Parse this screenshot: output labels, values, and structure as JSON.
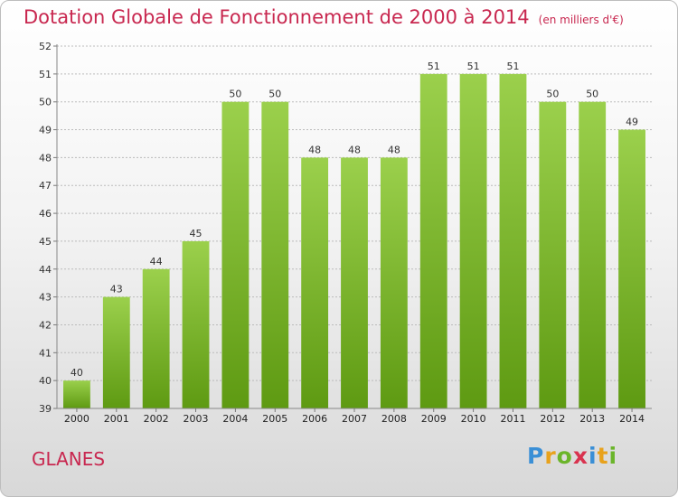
{
  "header": {
    "title": "Dotation Globale de Fonctionnement de 2000 à 2014",
    "unit": "(en milliers d'€)"
  },
  "footer": {
    "commune": "GLANES",
    "brand_letters": [
      "P",
      "r",
      "o",
      "x",
      "i",
      "t",
      "i"
    ],
    "brand_colors": [
      "#3a8fd6",
      "#e8a21c",
      "#6bb52a",
      "#d9334f",
      "#3a8fd6",
      "#e8a21c",
      "#6bb52a"
    ]
  },
  "colors": {
    "bar_light": "#9bd04c",
    "bar_dark": "#5e9a12",
    "title": "#c8274f"
  },
  "chart_data": {
    "type": "bar",
    "title": "Dotation Globale de Fonctionnement de 2000 à 2014",
    "xlabel": "",
    "ylabel": "",
    "categories": [
      "2000",
      "2001",
      "2002",
      "2003",
      "2004",
      "2005",
      "2006",
      "2007",
      "2008",
      "2009",
      "2010",
      "2011",
      "2012",
      "2013",
      "2014"
    ],
    "values": [
      40,
      43,
      44,
      45,
      50,
      50,
      48,
      48,
      48,
      51,
      51,
      51,
      50,
      50,
      49
    ],
    "ylim": [
      39,
      52
    ],
    "yticks": [
      39,
      40,
      41,
      42,
      43,
      44,
      45,
      46,
      47,
      48,
      49,
      50,
      51,
      52
    ],
    "grid": true,
    "data_labels": true
  }
}
